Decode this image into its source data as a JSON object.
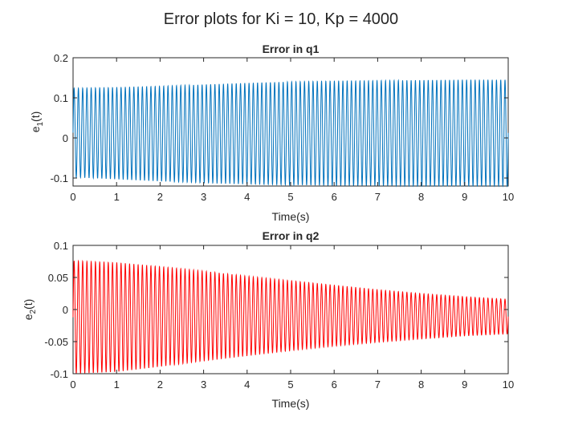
{
  "figure": {
    "title": "Error plots for Ki = 10, Kp = 4000"
  },
  "chart_data": [
    {
      "type": "line",
      "title": "Error in q1",
      "xlabel": "Time(s)",
      "ylabel": "e_1(t)",
      "xlim": [
        0,
        10
      ],
      "ylim": [
        -0.12,
        0.2
      ],
      "xticks": [
        0,
        1,
        2,
        3,
        4,
        5,
        6,
        7,
        8,
        9,
        10
      ],
      "yticks": [
        -0.1,
        0,
        0.1,
        0.2
      ],
      "xtick_labels": [
        "0",
        "1",
        "2",
        "3",
        "4",
        "5",
        "6",
        "7",
        "8",
        "9",
        "10"
      ],
      "ytick_labels": [
        "-0.1",
        "0",
        "0.1",
        "0.2"
      ],
      "grid": false,
      "series": [
        {
          "color": "#0072BD",
          "signal": "sinusoidal oscillation",
          "cycles": 102,
          "t": [
            0,
            1,
            2,
            3,
            4,
            5,
            6,
            7,
            8,
            9,
            10
          ],
          "upper_envelope": [
            0.124,
            0.126,
            0.129,
            0.133,
            0.137,
            0.14,
            0.142,
            0.143,
            0.144,
            0.145,
            0.145
          ],
          "lower_envelope": [
            -0.098,
            -0.103,
            -0.108,
            -0.112,
            -0.115,
            -0.117,
            -0.119,
            -0.119,
            -0.12,
            -0.12,
            -0.12
          ]
        }
      ]
    },
    {
      "type": "line",
      "title": "Error in q2",
      "xlabel": "Time(s)",
      "ylabel": "e_2(t)",
      "xlim": [
        0,
        10
      ],
      "ylim": [
        -0.1,
        0.1
      ],
      "xticks": [
        0,
        1,
        2,
        3,
        4,
        5,
        6,
        7,
        8,
        9,
        10
      ],
      "yticks": [
        -0.1,
        -0.05,
        0,
        0.05,
        0.1
      ],
      "xtick_labels": [
        "0",
        "1",
        "2",
        "3",
        "4",
        "5",
        "6",
        "7",
        "8",
        "9",
        "10"
      ],
      "ytick_labels": [
        "-0.1",
        "-0.05",
        "0",
        "0.05",
        "0.1"
      ],
      "grid": false,
      "series": [
        {
          "color": "#FF0000",
          "signal": "sinusoidal oscillation",
          "cycles": 102,
          "t": [
            0,
            1,
            2,
            3,
            4,
            5,
            6,
            7,
            8,
            9,
            10
          ],
          "upper_envelope": [
            0.076,
            0.073,
            0.067,
            0.06,
            0.052,
            0.045,
            0.038,
            0.031,
            0.025,
            0.02,
            0.016
          ],
          "lower_envelope": [
            -0.1,
            -0.097,
            -0.089,
            -0.08,
            -0.072,
            -0.064,
            -0.057,
            -0.051,
            -0.046,
            -0.041,
            -0.038
          ]
        }
      ]
    }
  ]
}
